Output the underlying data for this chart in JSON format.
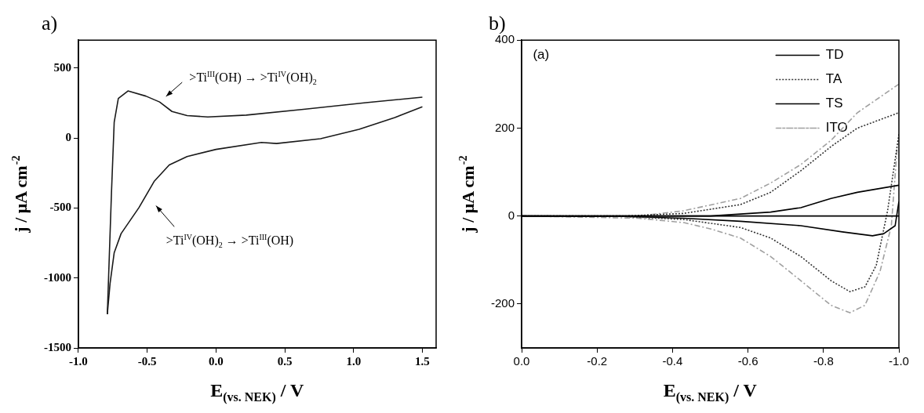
{
  "chart_data": [
    {
      "type": "line",
      "title": "a)",
      "xlabel": "E$_{(vs. NEK)}$ / V",
      "ylabel": "j / μA cm$^{-2}$",
      "marker": "none",
      "xlim": [
        -1,
        1.6
      ],
      "ylim": [
        -1500,
        700
      ],
      "xticks": [
        {
          "value": -1,
          "label": "-1.0"
        },
        -0.5,
        {
          "value": 0,
          "label": "0.0"
        },
        0.5,
        {
          "value": 1,
          "label": "1.0"
        },
        1.5
      ],
      "yticks": [
        -1500,
        -1000,
        -500,
        0,
        500
      ],
      "annotations": [
        ">Ti$^{III}$(OH) → >Ti$^{IV}$(OH)$_{2}$",
        ">Ti$^{IV}$(OH)$_{2}$ → >Ti$^{III}$(OH)"
      ],
      "series": [
        {
          "color": "#1a1a1a",
          "x": [
            -0.79,
            -0.76,
            -0.74,
            -0.71,
            -0.64,
            -0.51,
            -0.41,
            -0.32,
            -0.21,
            -0.06,
            0.22,
            0.65,
            1.09,
            1.5
          ],
          "values": [
            -1259,
            -395,
            114,
            283,
            337,
            300,
            258,
            190,
            161,
            151,
            164,
            207,
            253,
            292
          ]
        },
        {
          "color": "#1a1a1a",
          "x": [
            1.5,
            1.3,
            1.04,
            0.76,
            0.44,
            0.33,
            0.0,
            -0.21,
            -0.34,
            -0.45,
            -0.56,
            -0.69,
            -0.74,
            -0.77,
            -0.79
          ],
          "values": [
            224,
            147,
            63,
            -5,
            -39,
            -31,
            -81,
            -132,
            -192,
            -310,
            -497,
            -683,
            -819,
            -1039,
            -1259
          ]
        }
      ]
    },
    {
      "type": "line",
      "title": "b)",
      "xlabel": "E$_{(vs. NEK)}$ / V",
      "ylabel": "j / μA cm$^{-2}$",
      "marker": "none",
      "legend": "top right",
      "xlim": [
        0,
        -1
      ],
      "ylim": [
        -300,
        400
      ],
      "xticks": [
        {
          "value": 0,
          "label": "0.0"
        },
        -0.2,
        -0.4,
        -0.6,
        -0.8,
        {
          "value": -1,
          "label": "-1.0"
        }
      ],
      "yticks": [
        -200,
        0,
        200,
        400
      ],
      "annotations": [
        "(a)"
      ],
      "series": [
        {
          "name": "TD",
          "color": "#000000",
          "line_style": "solid",
          "x": [
            0,
            -0.5,
            -1
          ],
          "values": [
            0,
            0,
            0
          ]
        },
        {
          "name": "TA",
          "color": "#333333",
          "line_style": "dotted",
          "x": [
            0,
            -0.27,
            -0.43,
            -0.58,
            -0.66,
            -0.74,
            -0.82,
            -0.89,
            -1.0
          ],
          "values": [
            0,
            0,
            6,
            26,
            54,
            103,
            158,
            200,
            235
          ]
        },
        {
          "color": "#333333",
          "line_style": "dotted",
          "x": [
            -1.0,
            -0.97,
            -0.94,
            -0.91,
            -0.87,
            -0.82,
            -0.74,
            -0.66,
            -0.58,
            -0.43,
            -0.27,
            0
          ],
          "values": [
            186,
            12,
            -112,
            -161,
            -172,
            -147,
            -92,
            -50,
            -26,
            -8,
            -1,
            0
          ]
        },
        {
          "name": "TS",
          "color": "#000000",
          "line_style": "solid",
          "x": [
            0,
            -0.5,
            -0.66,
            -0.74,
            -0.82,
            -0.89,
            -1.0
          ],
          "values": [
            0,
            0,
            9,
            19,
            40,
            54,
            70
          ]
        },
        {
          "color": "#000000",
          "line_style": "solid",
          "x": [
            -1.0,
            -0.99,
            -0.96,
            -0.93,
            -0.85,
            -0.74,
            -0.58,
            -0.43,
            -0.27,
            0
          ],
          "values": [
            33,
            -22,
            -40,
            -45,
            -36,
            -22,
            -12,
            -5,
            -1,
            0
          ]
        },
        {
          "name": "ITO",
          "color": "#a0a0a0",
          "line_style": "dashed",
          "x": [
            0,
            -0.31,
            -0.43,
            -0.58,
            -0.66,
            -0.74,
            -0.82,
            -0.89,
            -1.0
          ],
          "values": [
            0,
            0,
            12,
            40,
            75,
            117,
            172,
            235,
            300
          ]
        },
        {
          "color": "#a0a0a0",
          "line_style": "dashed",
          "x": [
            -0.995,
            -0.98,
            -0.95,
            -0.91,
            -0.87,
            -0.82,
            -0.74,
            -0.66,
            -0.58,
            -0.5,
            -0.43,
            -0.31,
            0
          ],
          "values": [
            151,
            -22,
            -126,
            -203,
            -220,
            -203,
            -147,
            -92,
            -50,
            -29,
            -15,
            -5,
            0
          ]
        }
      ]
    }
  ]
}
